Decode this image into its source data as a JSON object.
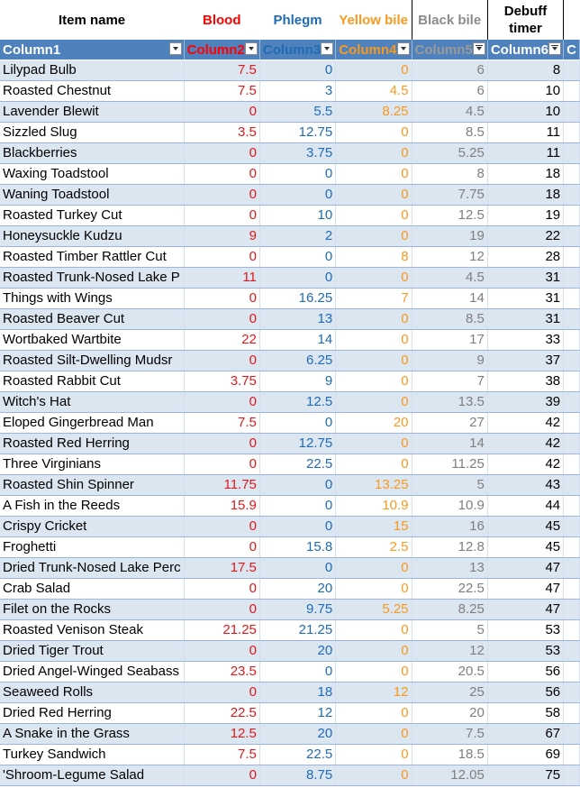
{
  "titles": {
    "item": "Item name",
    "blood": "Blood",
    "phlegm": "Phlegm",
    "yellow": "Yellow bile",
    "black": "Black bile",
    "debuff": "Debuff timer"
  },
  "headers": {
    "c1": "Column1",
    "c2": "Column2",
    "c3": "Column3",
    "c4": "Column4",
    "c5": "Column5",
    "c6": "Column6",
    "c7": "C"
  },
  "rows": [
    [
      "Lilypad Bulb",
      "7.5",
      "0",
      "0",
      "6",
      "8"
    ],
    [
      "Roasted Chestnut",
      "7.5",
      "3",
      "4.5",
      "6",
      "10"
    ],
    [
      "Lavender Blewit",
      "0",
      "5.5",
      "8.25",
      "4.5",
      "10"
    ],
    [
      "Sizzled Slug",
      "3.5",
      "12.75",
      "0",
      "8.5",
      "11"
    ],
    [
      "Blackberries",
      "0",
      "3.75",
      "0",
      "5.25",
      "11"
    ],
    [
      "Waxing Toadstool",
      "0",
      "0",
      "0",
      "8",
      "18"
    ],
    [
      "Waning Toadstool",
      "0",
      "0",
      "0",
      "7.75",
      "18"
    ],
    [
      "Roasted Turkey Cut",
      "0",
      "10",
      "0",
      "12.5",
      "19"
    ],
    [
      "Honeysuckle Kudzu",
      "9",
      "2",
      "0",
      "19",
      "22"
    ],
    [
      "Roasted Timber Rattler Cut",
      "0",
      "0",
      "8",
      "12",
      "28"
    ],
    [
      "Roasted Trunk-Nosed Lake P",
      "11",
      "0",
      "0",
      "4.5",
      "31"
    ],
    [
      "Things with Wings",
      "0",
      "16.25",
      "7",
      "14",
      "31"
    ],
    [
      "Roasted Beaver Cut",
      "0",
      "13",
      "0",
      "8.5",
      "31"
    ],
    [
      "Wortbaked Wartbite",
      "22",
      "14",
      "0",
      "17",
      "33"
    ],
    [
      "Roasted Silt-Dwelling Mudsr",
      "0",
      "6.25",
      "0",
      "9",
      "37"
    ],
    [
      "Roasted Rabbit Cut",
      "3.75",
      "9",
      "0",
      "7",
      "38"
    ],
    [
      "Witch's Hat",
      "0",
      "12.5",
      "0",
      "13.5",
      "39"
    ],
    [
      "Eloped Gingerbread Man",
      "7.5",
      "0",
      "20",
      "27",
      "42"
    ],
    [
      "Roasted Red Herring",
      "0",
      "12.75",
      "0",
      "14",
      "42"
    ],
    [
      "Three Virginians",
      "0",
      "22.5",
      "0",
      "11.25",
      "42"
    ],
    [
      "Roasted Shin Spinner",
      "11.75",
      "0",
      "13.25",
      "5",
      "43"
    ],
    [
      "A Fish in the Reeds",
      "15.9",
      "0",
      "10.9",
      "10.9",
      "44"
    ],
    [
      "Crispy Cricket",
      "0",
      "0",
      "15",
      "16",
      "45"
    ],
    [
      "Froghetti",
      "0",
      "15.8",
      "2.5",
      "12.8",
      "45"
    ],
    [
      "Dried Trunk-Nosed Lake Perc",
      "17.5",
      "0",
      "0",
      "13",
      "47"
    ],
    [
      "Crab Salad",
      "0",
      "20",
      "0",
      "22.5",
      "47"
    ],
    [
      "Filet on the Rocks",
      "0",
      "9.75",
      "5.25",
      "8.25",
      "47"
    ],
    [
      "Roasted Venison Steak",
      "21.25",
      "21.25",
      "0",
      "5",
      "53"
    ],
    [
      "Dried Tiger Trout",
      "0",
      "20",
      "0",
      "12",
      "53"
    ],
    [
      "Dried Angel-Winged Seabass",
      "23.5",
      "0",
      "0",
      "20.5",
      "56"
    ],
    [
      "Seaweed Rolls",
      "0",
      "18",
      "12",
      "25",
      "56"
    ],
    [
      "Dried Red Herring",
      "22.5",
      "12",
      "0",
      "20",
      "58"
    ],
    [
      "A Snake in the Grass",
      "12.5",
      "20",
      "0",
      "7.5",
      "67"
    ],
    [
      "Turkey Sandwich",
      "7.5",
      "22.5",
      "0",
      "18.5",
      "69"
    ],
    [
      "'Shroom-Legume Salad",
      "0",
      "8.75",
      "0",
      "12.05",
      "75"
    ]
  ],
  "colors": {
    "header_bg": "#4f81bd",
    "band": "#dce6f1",
    "blood": "#e0191c",
    "phlegm": "#1f6bb4",
    "yellow": "#f79a1e",
    "black": "#7f7f7f"
  }
}
